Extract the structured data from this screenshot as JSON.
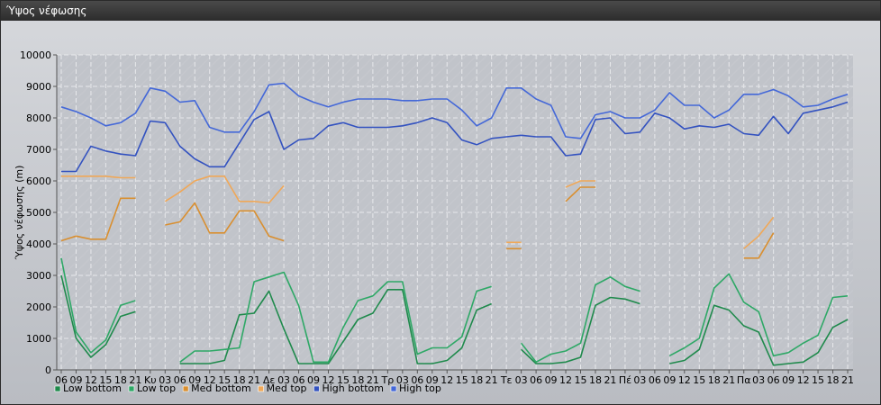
{
  "window": {
    "title": "Ύψος νέφωσης"
  },
  "chart_data": {
    "type": "line",
    "title": "",
    "ylabel": "Ύψος νέφωσης (m)",
    "xlabel": "",
    "ylim": [
      0,
      10000
    ],
    "y_ticks": [
      0,
      1000,
      2000,
      3000,
      4000,
      5000,
      6000,
      7000,
      8000,
      9000,
      10000
    ],
    "grid": true,
    "legend_position": "bottom-left",
    "x_tick_labels": [
      "06",
      "09",
      "12",
      "15",
      "18",
      "21",
      "Κυ",
      "03",
      "06",
      "09",
      "12",
      "15",
      "18",
      "21",
      "Δε",
      "03",
      "06",
      "09",
      "12",
      "15",
      "18",
      "21",
      "Τρ",
      "03",
      "06",
      "09",
      "12",
      "15",
      "18",
      "21",
      "Τε",
      "03",
      "06",
      "09",
      "12",
      "15",
      "18",
      "21",
      "Πέ",
      "03",
      "06",
      "09",
      "12",
      "15",
      "18",
      "21",
      "Πα",
      "03",
      "06",
      "09",
      "12",
      "15",
      "18",
      "21"
    ],
    "series": [
      {
        "name": "Low bottom",
        "color": "#1f8a4c",
        "values": [
          3000,
          1000,
          400,
          800,
          1700,
          1850,
          null,
          null,
          200,
          200,
          200,
          300,
          1750,
          1800,
          2500,
          1300,
          200,
          200,
          200,
          900,
          1600,
          1800,
          2550,
          2550,
          200,
          200,
          300,
          700,
          1900,
          2100,
          null,
          650,
          200,
          200,
          250,
          400,
          2050,
          2300,
          2250,
          2100,
          null,
          200,
          300,
          650,
          2050,
          1900,
          1400,
          1200,
          150,
          200,
          250,
          550,
          1350,
          1600
        ]
      },
      {
        "name": "Low top",
        "color": "#2ea866",
        "values": [
          3550,
          1200,
          550,
          950,
          2050,
          2200,
          null,
          null,
          250,
          600,
          600,
          650,
          700,
          2800,
          2950,
          3100,
          2050,
          250,
          250,
          1350,
          2200,
          2350,
          2800,
          2800,
          500,
          700,
          700,
          1050,
          2500,
          2650,
          null,
          850,
          250,
          500,
          600,
          850,
          2700,
          2950,
          2650,
          2500,
          null,
          450,
          700,
          1000,
          2600,
          3050,
          2150,
          1850,
          450,
          550,
          850,
          1100,
          2300,
          2350
        ]
      },
      {
        "name": "Med bottom",
        "color": "#d98f30",
        "values": [
          4100,
          4250,
          4150,
          4150,
          5450,
          5450,
          null,
          4600,
          4700,
          5300,
          4350,
          4350,
          5050,
          5050,
          4250,
          4100,
          null,
          null,
          null,
          null,
          null,
          null,
          null,
          null,
          null,
          null,
          null,
          null,
          null,
          null,
          3850,
          3850,
          null,
          null,
          5350,
          5800,
          5800,
          null,
          null,
          null,
          null,
          null,
          null,
          null,
          null,
          null,
          3550,
          3550,
          4350,
          null,
          null,
          null,
          null,
          null
        ]
      },
      {
        "name": "Med top",
        "color": "#f0a858",
        "values": [
          6150,
          6150,
          6150,
          6150,
          6100,
          6100,
          null,
          5350,
          5650,
          6000,
          6150,
          6150,
          5350,
          5350,
          5300,
          5850,
          null,
          null,
          null,
          null,
          null,
          null,
          null,
          null,
          null,
          null,
          null,
          null,
          null,
          null,
          4050,
          4050,
          null,
          null,
          5800,
          6000,
          6000,
          null,
          null,
          null,
          null,
          null,
          null,
          null,
          null,
          null,
          3850,
          4250,
          4850,
          null,
          null,
          null,
          null,
          null
        ]
      },
      {
        "name": "High bottom",
        "color": "#3352c0",
        "values": [
          6300,
          6300,
          7100,
          6950,
          6850,
          6800,
          7900,
          7850,
          7100,
          6700,
          6450,
          6450,
          7200,
          7950,
          8200,
          7000,
          7300,
          7350,
          7750,
          7850,
          7700,
          7700,
          7700,
          7750,
          7850,
          8000,
          7850,
          7300,
          7150,
          7350,
          7400,
          7450,
          7400,
          7400,
          6800,
          6850,
          7950,
          8000,
          7500,
          7550,
          8150,
          8000,
          7650,
          7750,
          7700,
          7800,
          7500,
          7450,
          8050,
          7500,
          8150,
          8250,
          8350,
          8500
        ]
      },
      {
        "name": "High top",
        "color": "#4468d8",
        "values": [
          8350,
          8200,
          8000,
          7750,
          7850,
          8150,
          8950,
          8850,
          8500,
          8550,
          7700,
          7550,
          7550,
          8200,
          9050,
          9100,
          8700,
          8500,
          8350,
          8500,
          8600,
          8600,
          8600,
          8550,
          8550,
          8600,
          8600,
          8250,
          7750,
          8000,
          8950,
          8950,
          8600,
          8400,
          7400,
          7350,
          8100,
          8200,
          8000,
          8000,
          8250,
          8800,
          8400,
          8400,
          8000,
          8250,
          8750,
          8750,
          8900,
          8700,
          8350,
          8400,
          8600,
          8750
        ]
      }
    ]
  }
}
